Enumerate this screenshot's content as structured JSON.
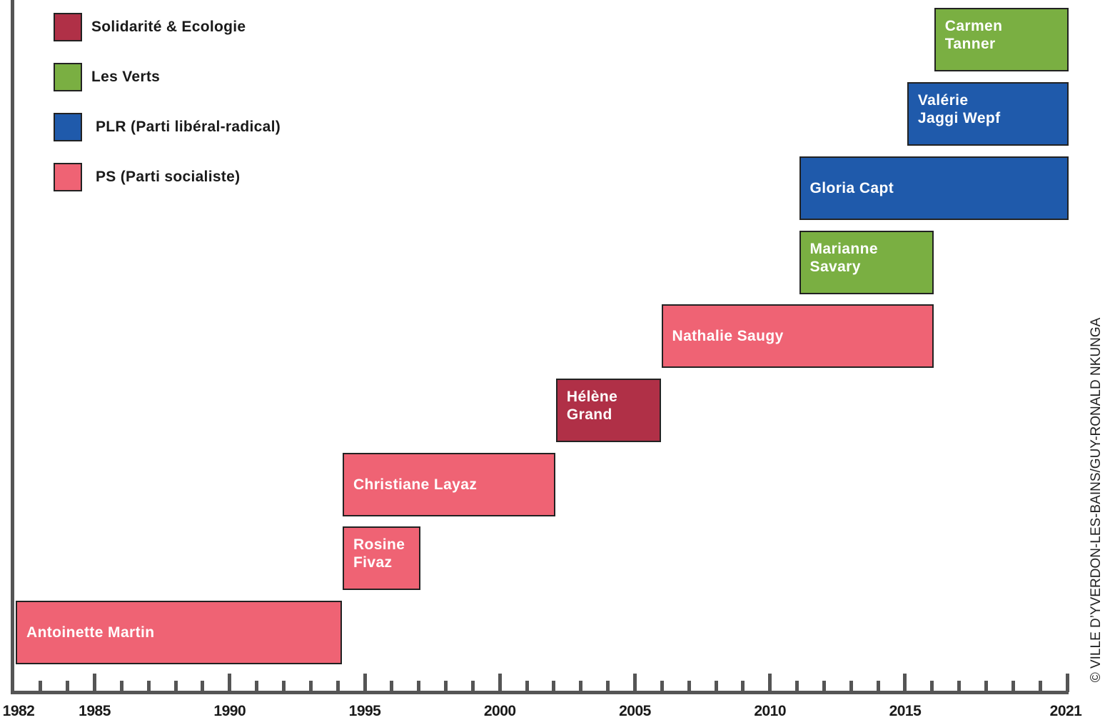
{
  "chart_data": {
    "type": "bar",
    "subtype": "gantt-timeline",
    "title": "",
    "xlabel": "",
    "ylabel": "",
    "xlim": [
      1982,
      2021
    ],
    "x_tick_labels": [
      "1982",
      "1985",
      "1990",
      "1995",
      "2000",
      "2005",
      "2010",
      "2015",
      "2021"
    ],
    "x_ticks": [
      1982,
      1985,
      1990,
      1995,
      2000,
      2005,
      2010,
      2015,
      2021
    ],
    "legend": {
      "placement": "top-left",
      "entries": [
        {
          "name": "Solidarité & Ecologie",
          "color": "#b03047"
        },
        {
          "name": "Les Verts",
          "color": "#7aaf42"
        },
        {
          "name": "PLR (Parti libéral-radical)",
          "color": "#1f5aab"
        },
        {
          "name": "PS (Parti socialiste)",
          "color": "#ef6374"
        }
      ]
    },
    "bars": [
      {
        "name": "Antoinette Martin",
        "party": "PS (Parti socialiste)",
        "start": 1982,
        "end": 1994.1,
        "row": 0
      },
      {
        "name": "Rosine\nFivaz",
        "party": "PS (Parti socialiste)",
        "start": 1994.1,
        "end": 1997,
        "row": 1
      },
      {
        "name": "Christiane Layaz",
        "party": "PS (Parti socialiste)",
        "start": 1994.1,
        "end": 2002,
        "row": 2
      },
      {
        "name": "Hélène\nGrand",
        "party": "Solidarité & Ecologie",
        "start": 2002,
        "end": 2005.9,
        "row": 3
      },
      {
        "name": "Nathalie Saugy",
        "party": "PS (Parti socialiste)",
        "start": 2005.9,
        "end": 2016,
        "row": 4
      },
      {
        "name": "Marianne\nSavary",
        "party": "Les Verts",
        "start": 2011,
        "end": 2016,
        "row": 5
      },
      {
        "name": "Gloria Capt",
        "party": "PLR (Parti libéral-radical)",
        "start": 2011,
        "end": 2021,
        "row": 6
      },
      {
        "name": "Valérie\nJaggi Wepf",
        "party": "PLR (Parti libéral-radical)",
        "start": 2015,
        "end": 2021,
        "row": 7
      },
      {
        "name": "Carmen\nTanner",
        "party": "Les Verts",
        "start": 2016,
        "end": 2021,
        "row": 8
      }
    ]
  },
  "credit": "© VILLE D’YVERDON-LES-BAINS/GUY-RONALD NKUNGA"
}
